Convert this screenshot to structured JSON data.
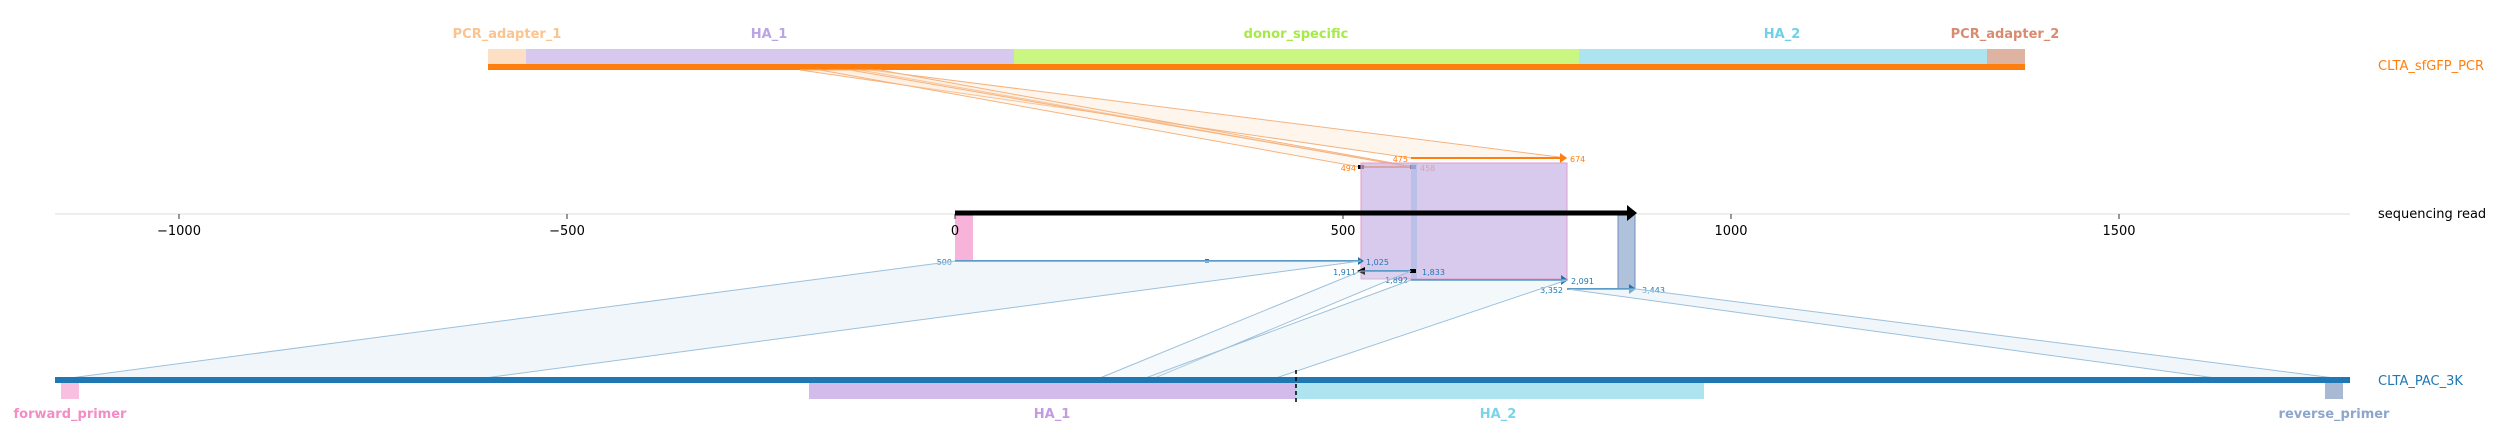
{
  "colors": {
    "pcr_orange": "#ff7f0e",
    "pcr_band": "#f7a96a",
    "pac_blue": "#1f77b4",
    "pac_band": "#a9c9e3",
    "pcr_adapter_1": "#fdd6ad",
    "ha_1": "#c7b3e6",
    "donor_specific": "#c6f57a",
    "ha_2": "#a5e1ee",
    "pcr_adapter_2": "#dcae9b",
    "forward_primer": "#f7b3d9",
    "reverse_primer": "#a9b9d3",
    "read": "#000000",
    "overlap_fill": "#c7b3e6"
  },
  "read_track": {
    "label": "sequencing read",
    "axis_min": -1150,
    "axis_max": 1800,
    "ticks": [
      "−1000",
      "−500",
      "0",
      "500",
      "1000",
      "1500"
    ],
    "tick_values": [
      -1000,
      -500,
      0,
      500,
      1000,
      1500
    ],
    "read_start": 0,
    "read_end": 880
  },
  "top_reference": {
    "name": "CLTA_sfGFP_PCR",
    "features": [
      {
        "name": "PCR_adapter_1",
        "color": "#f9c08c",
        "start": 0,
        "end": 24
      },
      {
        "name": "HA_1",
        "color": "#b59ce0",
        "start": 24,
        "end": 336
      },
      {
        "name": "donor_specific",
        "color": "#a8e84a",
        "start": 336,
        "end": 700
      },
      {
        "name": "HA_2",
        "color": "#79d4ea",
        "start": 700,
        "end": 962
      },
      {
        "name": "PCR_adapter_2",
        "color": "#d98b70",
        "start": 962,
        "end": 986
      }
    ],
    "length": 986
  },
  "bottom_reference": {
    "name": "CLTA_PAC_3K",
    "features": [
      {
        "name": "forward_primer",
        "color": "#f48cc6",
        "start": 0,
        "end": 20
      },
      {
        "name": "HA_1",
        "color": "#c29be0",
        "start": 1500,
        "end": 2405
      },
      {
        "name": "HA_2",
        "color": "#79d4ea",
        "start": 2405,
        "end": 3300
      },
      {
        "name": "reverse_primer",
        "color": "#8ea6cc",
        "start": 3425,
        "end": 3443
      }
    ],
    "length": 3443,
    "cut_site": 2405
  },
  "top_alignments": [
    {
      "ref_start": 494,
      "ref_end": 475,
      "read_start": 520,
      "read_end": 590,
      "labels": [
        "494",
        "475"
      ]
    },
    {
      "ref_start": 475,
      "ref_end": 674,
      "read_start": 590,
      "read_end": 790,
      "labels": [
        "475",
        "674"
      ]
    },
    {
      "ref_start": 458,
      "ref_end": 475,
      "read_start": 590,
      "read_end": 590,
      "labels": [
        "458"
      ]
    }
  ],
  "bottom_alignments": [
    {
      "ref_start": 500,
      "ref_end": 1025,
      "read_start": 0,
      "read_end": 525,
      "labels": [
        "500",
        "1,025"
      ]
    },
    {
      "ref_start": 1911,
      "ref_end": 1892,
      "read_start": 525,
      "read_end": 590,
      "labels": [
        "1,911",
        "1,892"
      ]
    },
    {
      "ref_start": 1833,
      "ref_end": 2091,
      "read_start": 590,
      "read_end": 790,
      "labels": [
        "1,833",
        "2,091"
      ]
    },
    {
      "ref_start": 3352,
      "ref_end": 3443,
      "read_start": 790,
      "read_end": 880,
      "labels": [
        "3,352",
        "3,443"
      ]
    }
  ]
}
